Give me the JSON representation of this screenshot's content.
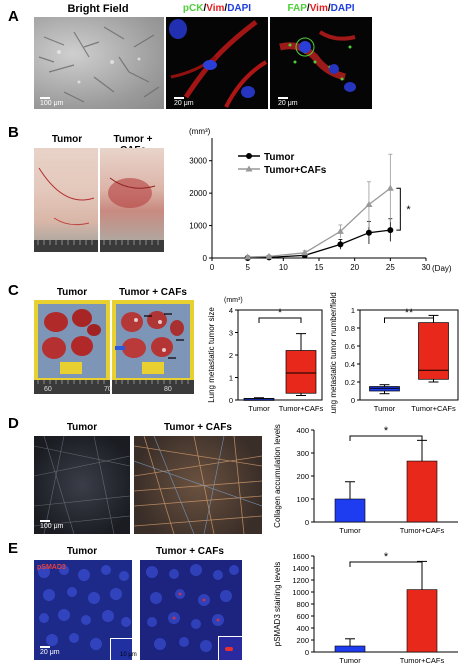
{
  "panels": {
    "a": "A",
    "b": "B",
    "c": "C",
    "d": "D",
    "e": "E"
  },
  "panelA": {
    "bright_field": "Bright Field",
    "stain1": {
      "pck": "pCK",
      "sep1": "/",
      "vim": "Vim",
      "sep2": "/",
      "dapi": "DAPI"
    },
    "stain2": {
      "fap": "FAP",
      "sep1": "/",
      "vim": "Vim",
      "sep2": "/",
      "dapi": "DAPI"
    },
    "scale1": "100 μm",
    "scale2": "20 μm",
    "scale3": "20 μm"
  },
  "panelB": {
    "tumor": "Tumor",
    "tumor_cafs": "Tumor + CAFs"
  },
  "panelC": {
    "tumor": "Tumor",
    "tumor_cafs": "Tumor + CAFs",
    "ruler": [
      "60",
      "70",
      "80"
    ]
  },
  "panelD": {
    "tumor": "Tumor",
    "tumor_cafs": "Tumor + CAFs",
    "scale": "100 μm"
  },
  "panelE": {
    "tumor": "Tumor",
    "tumor_cafs": "Tumor + CAFs",
    "stain": "pSMAD3",
    "scale": "20 μm",
    "inset_scale": "10 μm"
  },
  "colors": {
    "tumor_bar": "#1f3df0",
    "cafs_bar": "#e8281a",
    "pck": "#4fcf3a",
    "vim": "#e02020",
    "dapi": "#2040e0"
  },
  "chart_data": [
    {
      "type": "line",
      "unit": "(mm³)",
      "xlabel": "(Day)",
      "x_ticks": [
        0,
        5,
        10,
        15,
        20,
        25,
        30
      ],
      "y_ticks": [
        0,
        1000,
        2000,
        3000
      ],
      "xlim": [
        0,
        30
      ],
      "ylim": [
        0,
        3700
      ],
      "significance": "*",
      "series": [
        {
          "name": "Tumor",
          "color": "#000000",
          "x": [
            5,
            8,
            13,
            18,
            22,
            25
          ],
          "values": [
            0,
            20,
            80,
            420,
            780,
            860
          ],
          "err": [
            10,
            20,
            40,
            150,
            350,
            350
          ]
        },
        {
          "name": "Tumor+CAFs",
          "color": "#999999",
          "x": [
            5,
            8,
            13,
            18,
            22,
            25
          ],
          "values": [
            30,
            50,
            160,
            820,
            1650,
            2150
          ],
          "err": [
            10,
            30,
            60,
            200,
            700,
            1050
          ]
        }
      ]
    },
    {
      "type": "box",
      "unit": "(mm³)",
      "ylabel": "Lung metastatic tumor size",
      "categories": [
        "Tumor",
        "Tumor+CAFs"
      ],
      "y_ticks": [
        0,
        1,
        2,
        3,
        4
      ],
      "ylim": [
        0,
        4
      ],
      "significance": "*",
      "boxes": [
        {
          "min": 0.02,
          "q1": 0.03,
          "median": 0.05,
          "q3": 0.07,
          "max": 0.1,
          "color": "#1f3df0"
        },
        {
          "min": 0.2,
          "q1": 0.3,
          "median": 1.2,
          "q3": 2.2,
          "max": 2.95,
          "color": "#e8281a"
        }
      ]
    },
    {
      "type": "box",
      "ylabel": "Lung metastatic tumor number/field",
      "categories": [
        "Tumor",
        "Tumor+CAFs"
      ],
      "y_ticks": [
        0,
        0.2,
        0.4,
        0.6,
        0.8,
        1
      ],
      "ylim": [
        0,
        1
      ],
      "significance": "**",
      "boxes": [
        {
          "min": 0.07,
          "q1": 0.1,
          "median": 0.13,
          "q3": 0.15,
          "max": 0.17,
          "color": "#1f3df0"
        },
        {
          "min": 0.2,
          "q1": 0.23,
          "median": 0.33,
          "q3": 0.86,
          "max": 0.94,
          "color": "#e8281a"
        }
      ]
    },
    {
      "type": "bar",
      "ylabel": "Collagen accumulation levels",
      "categories": [
        "Tumor",
        "Tumor+CAFs"
      ],
      "values": [
        100,
        265
      ],
      "err": [
        75,
        90
      ],
      "y_ticks": [
        0,
        100,
        200,
        300,
        400
      ],
      "ylim": [
        0,
        400
      ],
      "significance": "*",
      "colors": [
        "#1f3df0",
        "#e8281a"
      ]
    },
    {
      "type": "bar",
      "ylabel": "pSMAD3 staining levels",
      "categories": [
        "Tumor",
        "Tumor+CAFs"
      ],
      "values": [
        100,
        1040
      ],
      "err": [
        120,
        470
      ],
      "y_ticks": [
        0,
        200,
        400,
        600,
        800,
        1000,
        1200,
        1400,
        1600
      ],
      "ylim": [
        0,
        1600
      ],
      "significance": "*",
      "colors": [
        "#1f3df0",
        "#e8281a"
      ]
    }
  ]
}
